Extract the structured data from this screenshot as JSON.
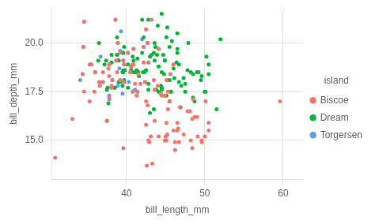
{
  "chart_data": {
    "type": "scatter",
    "xlabel": "bill_length_mm",
    "ylabel": "bill_depth_mm",
    "legend_title": "island",
    "legend": "right",
    "grid": true,
    "marker": "circle",
    "xlim": [
      30.5,
      62.5
    ],
    "ylim": [
      13.0,
      21.8
    ],
    "xticks": [
      40,
      50,
      60
    ],
    "yticks": [
      {
        "value": 15.0,
        "label": "15.0"
      },
      17.5,
      {
        "value": 20.0,
        "label": "20.0"
      }
    ],
    "series": [
      {
        "name": "Biscoe",
        "color": "#F8766D",
        "x": [
          37.8,
          37.7,
          35.3,
          41.1,
          38.6,
          34.6,
          36.6,
          38.7,
          42.5,
          34.4,
          46.0,
          37.8,
          30.9,
          33.1,
          37.0,
          37.8,
          35.9,
          38.2,
          38.8,
          35.3,
          40.6,
          40.5,
          37.0,
          39.2,
          36.5,
          40.8,
          36.0,
          44.1,
          37.5,
          39.7,
          40.2,
          41.4,
          35.5,
          42.4,
          38.9,
          34.5,
          42.8,
          40.9,
          44.9,
          39.2,
          37.8,
          41.5,
          34.6,
          36.7,
          38.1,
          43.2,
          38.1,
          45.6,
          39.7,
          42.2,
          39.6,
          42.7,
          43.6,
          40.8,
          43.5,
          42.2,
          45.1,
          41.8,
          45.0,
          48.4,
          46.5,
          43.1,
          48.1,
          50.0,
          47.3,
          42.8,
          45.1,
          59.6,
          49.1,
          48.4,
          42.6,
          44.4,
          44.0,
          48.7,
          42.7,
          49.6,
          45.3,
          49.6,
          50.5,
          43.6,
          45.5,
          50.5,
          44.9,
          45.2,
          46.6,
          48.5,
          45.1,
          50.1,
          46.5,
          46.0,
          47.8,
          48.2,
          39.6,
          44.1,
          46.2,
          42.9,
          41.3,
          42.5,
          42.5,
          44.5,
          45.3,
          46.7,
          43.3,
          46.8,
          40.9,
          49.0,
          46.2
        ],
        "values": [
          18.3,
          18.7,
          18.9,
          17.9,
          21.2,
          21.1,
          17.8,
          19.1,
          20.7,
          18.4,
          18.9,
          18.9,
          14.1,
          16.1,
          18.5,
          17.2,
          17.5,
          18.1,
          18.5,
          17.0,
          18.8,
          18.5,
          18.0,
          18.1,
          18.0,
          18.9,
          18.5,
          19.7,
          16.0,
          18.9,
          19.5,
          17.5,
          18.9,
          18.0,
          20.0,
          19.8,
          19.0,
          19.7,
          17.3,
          19.5,
          18.9,
          18.4,
          17.5,
          18.0,
          17.8,
          21.2,
          17.7,
          18.4,
          18.0,
          19.8,
          19.1,
          20.0,
          17.6,
          17.5,
          18.1,
          19.0,
          18.1,
          17.9,
          15.2,
          14.6,
          15.9,
          15.2,
          16.5,
          15.2,
          15.3,
          15.0,
          15.9,
          17.0,
          15.2,
          16.1,
          13.7,
          17.4,
          17.8,
          16.2,
          16.8,
          14.9,
          17.5,
          15.0,
          15.9,
          16.0,
          17.0,
          15.5,
          15.0,
          15.3,
          15.6,
          17.1,
          15.0,
          17.0,
          15.5,
          15.5,
          16.5,
          15.0,
          14.6,
          15.2,
          14.9,
          14.9,
          17.3,
          15.8,
          17.0,
          17.3,
          16.6,
          14.9,
          13.8,
          16.7,
          18.9,
          16.2,
          14.5
        ]
      },
      {
        "name": "Dream",
        "color": "#00BA38",
        "x": [
          39.5,
          37.2,
          39.5,
          40.9,
          36.4,
          39.2,
          38.8,
          42.2,
          37.6,
          39.8,
          36.5,
          40.8,
          36.0,
          44.1,
          37.5,
          39.7,
          40.2,
          41.4,
          35.5,
          42.4,
          38.9,
          34.5,
          42.8,
          40.9,
          44.9,
          46.5,
          37.5,
          44.5,
          38.1,
          41.1,
          39.0,
          41.4,
          38.5,
          45.2,
          39.5,
          38.1,
          42.1,
          39.7,
          45.8,
          43.6,
          41.6,
          40.2,
          40.6,
          41.5,
          45.1,
          45.2,
          46.1,
          46.0,
          44.9,
          43.6,
          40.2,
          37.7,
          43.8,
          43.7,
          44.5,
          39.6,
          44.1,
          39.6,
          42.3,
          39.7,
          39.6,
          39.0,
          43.2,
          38.8,
          37.4,
          42.5,
          50.2,
          41.3,
          43.5,
          43.0,
          46.5,
          50.5,
          46.4,
          45.5,
          45.5,
          48.5,
          49.5,
          52.0,
          44.5,
          42.8,
          44.1,
          43.9,
          43.5,
          49.2,
          44.0,
          45.7,
          49.0,
          47.0,
          49.6,
          47.5,
          44.7,
          42.0,
          47.8,
          47.5,
          44.5,
          43.0,
          40.9,
          50.5,
          48.5,
          45.6,
          51.5,
          45.5,
          47.9,
          42.0,
          46.5,
          44.8,
          42.8,
          46.9,
          46.7,
          50.1,
          44.9,
          48.2,
          50.0,
          47.3,
          42.8,
          45.1,
          39.0,
          44.4,
          48.7,
          46.7
        ],
        "values": [
          17.8,
          18.9,
          19.5,
          18.5,
          19.1,
          18.0,
          19.4,
          20.3,
          17.7,
          18.6,
          20.0,
          19.3,
          18.5,
          19.7,
          16.0,
          18.9,
          19.5,
          17.5,
          18.9,
          18.0,
          20.0,
          19.8,
          19.0,
          19.7,
          17.3,
          19.5,
          17.6,
          21.5,
          19.0,
          18.5,
          18.0,
          19.2,
          17.7,
          20.8,
          18.5,
          19.4,
          18.5,
          18.1,
          20.1,
          19.1,
          18.3,
          18.9,
          18.6,
          18.5,
          20.3,
          18.1,
          18.2,
          18.7,
          19.1,
          20.0,
          17.7,
          16.9,
          17.6,
          19.8,
          18.5,
          18.5,
          17.5,
          19.5,
          18.5,
          19.8,
          18.6,
          19.1,
          19.4,
          20.3,
          19.1,
          18.6,
          19.3,
          18.6,
          16.6,
          19.3,
          19.7,
          18.4,
          19.0,
          19.8,
          17.0,
          18.4,
          18.1,
          20.2,
          17.6,
          21.2,
          18.8,
          19.4,
          19.5,
          18.5,
          20.9,
          17.5,
          18.5,
          17.8,
          18.3,
          17.5,
          19.4,
          21.2,
          18.6,
          17.9,
          17.7,
          16.4,
          19.1,
          18.9,
          17.2,
          17.5,
          16.6,
          18.1,
          20.0,
          19.5,
          20.5,
          18.4,
          17.6,
          16.7,
          18.9,
          17.5,
          19.1,
          18.5,
          17.5,
          18.2,
          17.9,
          17.3,
          19.1,
          17.8,
          17.0,
          18.0
        ]
      },
      {
        "name": "Torgersen",
        "color": "#619CFF",
        "x": [
          39.1,
          39.5,
          40.3,
          36.7,
          39.3,
          38.9,
          39.2,
          34.1,
          42.0,
          37.8,
          37.8,
          41.1,
          38.6,
          34.6,
          36.6,
          38.7,
          42.5,
          34.4,
          46.0,
          37.8,
          40.6,
          40.5,
          37.0,
          39.2,
          38.2,
          38.8,
          38.5,
          41.5,
          38.1,
          45.6,
          39.7,
          42.2,
          39.6,
          42.7,
          43.6,
          40.8
        ],
        "values": [
          18.7,
          17.4,
          18.0,
          19.3,
          20.6,
          17.8,
          19.6,
          18.1,
          20.2,
          17.1,
          17.3,
          17.6,
          21.2,
          21.1,
          17.8,
          19.1,
          20.7,
          18.4,
          18.9,
          18.9,
          18.8,
          18.5,
          18.0,
          18.1,
          18.1,
          19.4,
          17.7,
          18.5,
          17.7,
          18.4,
          18.0,
          19.8,
          19.1,
          20.0,
          17.6,
          17.5
        ]
      }
    ]
  }
}
